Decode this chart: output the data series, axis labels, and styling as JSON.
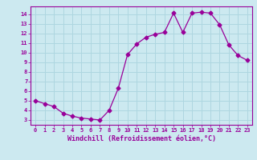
{
  "x": [
    0,
    1,
    2,
    3,
    4,
    5,
    6,
    7,
    8,
    9,
    10,
    11,
    12,
    13,
    14,
    15,
    16,
    17,
    18,
    19,
    20,
    21,
    22,
    23
  ],
  "y": [
    5.0,
    4.7,
    4.4,
    3.7,
    3.4,
    3.2,
    3.1,
    3.0,
    4.0,
    6.3,
    9.8,
    10.9,
    11.6,
    11.9,
    12.1,
    14.1,
    12.1,
    14.1,
    14.2,
    14.1,
    12.9,
    10.8,
    9.7,
    9.2
  ],
  "line_color": "#990099",
  "marker": "D",
  "marker_size": 2.5,
  "xlabel": "Windchill (Refroidissement éolien,°C)",
  "xlim": [
    -0.5,
    23.5
  ],
  "ylim": [
    2.5,
    14.8
  ],
  "yticks": [
    3,
    4,
    5,
    6,
    7,
    8,
    9,
    10,
    11,
    12,
    13,
    14
  ],
  "xtick_labels": [
    "0",
    "1",
    "2",
    "3",
    "4",
    "5",
    "6",
    "7",
    "8",
    "9",
    "10",
    "11",
    "12",
    "13",
    "14",
    "15",
    "16",
    "17",
    "18",
    "19",
    "20",
    "21",
    "22",
    "23"
  ],
  "bg_color": "#cce9f0",
  "grid_color": "#aed6e0",
  "axis_label_color": "#990099",
  "tick_color": "#990099",
  "font_name": "monospace"
}
